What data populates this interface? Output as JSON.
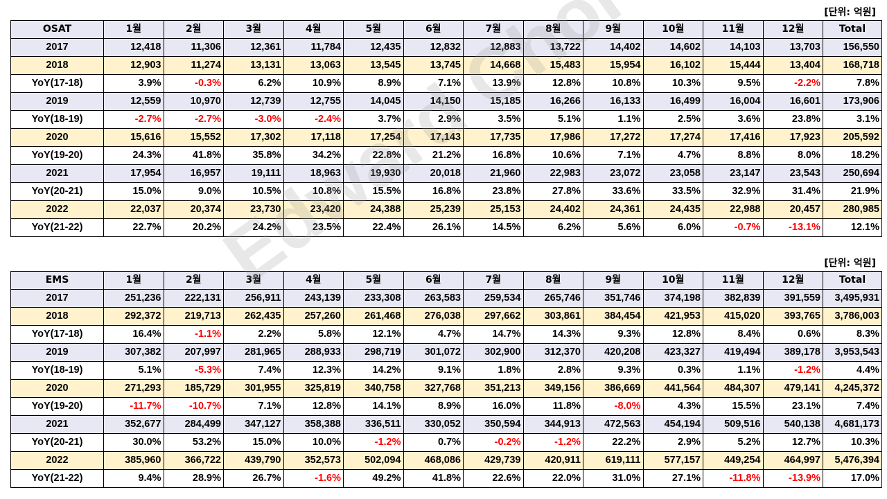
{
  "unit_label": "[단위: 억원]",
  "watermark": "Edward Choi",
  "osat": {
    "header": [
      "OSAT",
      "1월",
      "2월",
      "3월",
      "4월",
      "5월",
      "6월",
      "7월",
      "8월",
      "9월",
      "10월",
      "11월",
      "12월",
      "Total"
    ],
    "rows": [
      [
        "2017",
        "12,418",
        "11,306",
        "12,361",
        "11,784",
        "12,435",
        "12,832",
        "12,883",
        "13,722",
        "14,402",
        "14,602",
        "14,103",
        "13,703",
        "156,550"
      ],
      [
        "2018",
        "12,903",
        "11,274",
        "13,131",
        "13,063",
        "13,545",
        "13,745",
        "14,668",
        "15,483",
        "15,954",
        "16,102",
        "15,444",
        "13,404",
        "168,718"
      ],
      [
        "YoY(17-18)",
        "3.9%",
        "-0.3%",
        "6.2%",
        "10.9%",
        "8.9%",
        "7.1%",
        "13.9%",
        "12.8%",
        "10.8%",
        "10.3%",
        "9.5%",
        "-2.2%",
        "7.8%"
      ],
      [
        "2019",
        "12,559",
        "10,970",
        "12,739",
        "12,755",
        "14,045",
        "14,150",
        "15,185",
        "16,266",
        "16,133",
        "16,499",
        "16,004",
        "16,601",
        "173,906"
      ],
      [
        "YoY(18-19)",
        "-2.7%",
        "-2.7%",
        "-3.0%",
        "-2.4%",
        "3.7%",
        "2.9%",
        "3.5%",
        "5.1%",
        "1.1%",
        "2.5%",
        "3.6%",
        "23.8%",
        "3.1%"
      ],
      [
        "2020",
        "15,616",
        "15,552",
        "17,302",
        "17,118",
        "17,254",
        "17,143",
        "17,735",
        "17,986",
        "17,272",
        "17,274",
        "17,416",
        "17,923",
        "205,592"
      ],
      [
        "YoY(19-20)",
        "24.3%",
        "41.8%",
        "35.8%",
        "34.2%",
        "22.8%",
        "21.2%",
        "16.8%",
        "10.6%",
        "7.1%",
        "4.7%",
        "8.8%",
        "8.0%",
        "18.2%"
      ],
      [
        "2021",
        "17,954",
        "16,957",
        "19,111",
        "18,963",
        "19,930",
        "20,018",
        "21,960",
        "22,983",
        "23,072",
        "23,058",
        "23,147",
        "23,543",
        "250,694"
      ],
      [
        "YoY(20-21)",
        "15.0%",
        "9.0%",
        "10.5%",
        "10.8%",
        "15.5%",
        "16.8%",
        "23.8%",
        "27.8%",
        "33.6%",
        "33.5%",
        "32.9%",
        "31.4%",
        "21.9%"
      ],
      [
        "2022",
        "22,037",
        "20,374",
        "23,730",
        "23,420",
        "24,388",
        "25,239",
        "25,153",
        "24,402",
        "24,361",
        "24,435",
        "22,988",
        "20,457",
        "280,985"
      ],
      [
        "YoY(21-22)",
        "22.7%",
        "20.2%",
        "24.2%",
        "23.5%",
        "22.4%",
        "26.1%",
        "14.5%",
        "6.2%",
        "5.6%",
        "6.0%",
        "-0.7%",
        "-13.1%",
        "12.1%"
      ]
    ]
  },
  "ems": {
    "header": [
      "EMS",
      "1월",
      "2월",
      "3월",
      "4월",
      "5월",
      "6월",
      "7월",
      "8월",
      "9월",
      "10월",
      "11월",
      "12월",
      "Total"
    ],
    "rows": [
      [
        "2017",
        "251,236",
        "222,131",
        "256,911",
        "243,139",
        "233,308",
        "263,583",
        "259,534",
        "265,746",
        "351,746",
        "374,198",
        "382,839",
        "391,559",
        "3,495,931"
      ],
      [
        "2018",
        "292,372",
        "219,713",
        "262,435",
        "257,260",
        "261,468",
        "276,038",
        "297,662",
        "303,861",
        "384,454",
        "421,953",
        "415,020",
        "393,765",
        "3,786,003"
      ],
      [
        "YoY(17-18)",
        "16.4%",
        "-1.1%",
        "2.2%",
        "5.8%",
        "12.1%",
        "4.7%",
        "14.7%",
        "14.3%",
        "9.3%",
        "12.8%",
        "8.4%",
        "0.6%",
        "8.3%"
      ],
      [
        "2019",
        "307,382",
        "207,997",
        "281,965",
        "288,933",
        "298,719",
        "301,072",
        "302,900",
        "312,370",
        "420,208",
        "423,327",
        "419,494",
        "389,178",
        "3,953,543"
      ],
      [
        "YoY(18-19)",
        "5.1%",
        "-5.3%",
        "7.4%",
        "12.3%",
        "14.2%",
        "9.1%",
        "1.8%",
        "2.8%",
        "9.3%",
        "0.3%",
        "1.1%",
        "-1.2%",
        "4.4%"
      ],
      [
        "2020",
        "271,293",
        "185,729",
        "301,955",
        "325,819",
        "340,758",
        "327,768",
        "351,213",
        "349,156",
        "386,669",
        "441,564",
        "484,307",
        "479,141",
        "4,245,372"
      ],
      [
        "YoY(19-20)",
        "-11.7%",
        "-10.7%",
        "7.1%",
        "12.8%",
        "14.1%",
        "8.9%",
        "16.0%",
        "11.8%",
        "-8.0%",
        "4.3%",
        "15.5%",
        "23.1%",
        "7.4%"
      ],
      [
        "2021",
        "352,677",
        "284,499",
        "347,127",
        "358,388",
        "336,511",
        "330,052",
        "350,594",
        "344,913",
        "472,563",
        "454,194",
        "509,516",
        "540,138",
        "4,681,173"
      ],
      [
        "YoY(20-21)",
        "30.0%",
        "53.2%",
        "15.0%",
        "10.0%",
        "-1.2%",
        "0.7%",
        "-0.2%",
        "-1.2%",
        "22.2%",
        "2.9%",
        "5.2%",
        "12.7%",
        "10.3%"
      ],
      [
        "2022",
        "385,960",
        "366,722",
        "439,790",
        "352,573",
        "502,094",
        "468,086",
        "429,739",
        "420,911",
        "619,111",
        "577,157",
        "449,254",
        "464,997",
        "5,476,394"
      ],
      [
        "YoY(21-22)",
        "9.4%",
        "28.9%",
        "26.7%",
        "-1.6%",
        "49.2%",
        "41.8%",
        "22.6%",
        "22.0%",
        "31.0%",
        "27.1%",
        "-11.8%",
        "-13.9%",
        "17.0%"
      ]
    ]
  }
}
